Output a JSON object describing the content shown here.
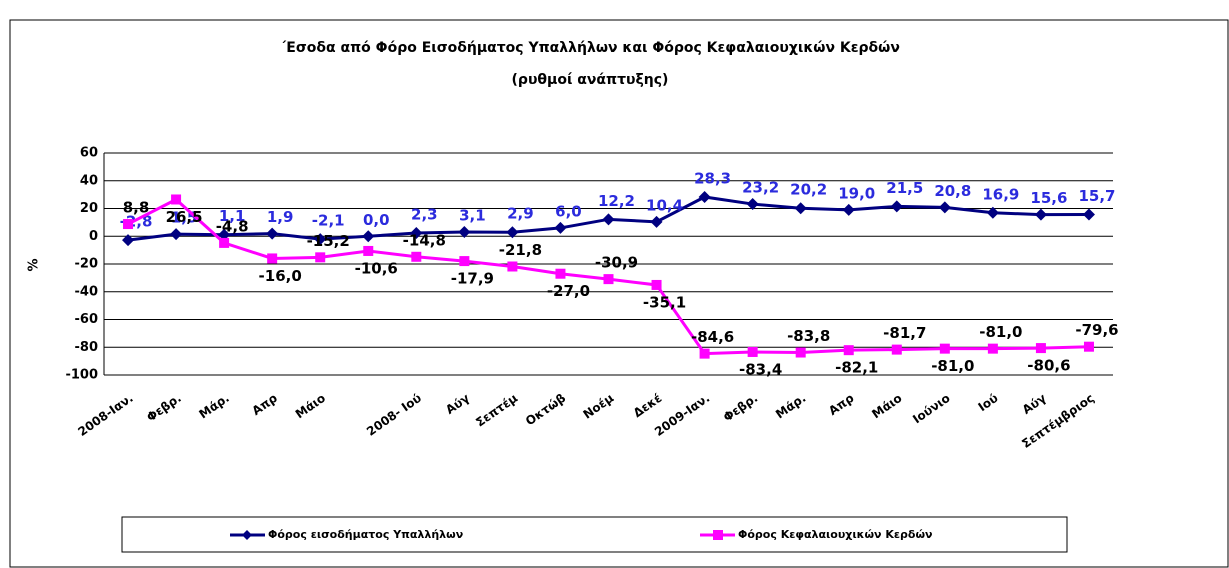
{
  "chart_data": {
    "type": "line",
    "title": "΄Εσοδα από Φόρο Εισοδήματος Υπαλλήλων και  Φόρος Κεφαλαιουχικών Κερδών",
    "subtitle": "(ρυθμοί ανάπτυξης)",
    "y_label": "%",
    "categories": [
      "2008-Ιαν.",
      "Φεβρ.",
      "Μάρ.",
      "Απρ",
      "Μάιο",
      null,
      "2008- Ιού",
      "Αύγ",
      "Σεπτέμ",
      "Οκτώβ",
      "Νοέμ",
      "Δεκέ",
      "2009-Ιαν.",
      "Φεβρ.",
      "Μάρ.",
      "Απρ",
      "Μάιο",
      "Ιούνιο",
      "Ιού",
      "Αύγ",
      "Σεπτέμβριος"
    ],
    "series": [
      {
        "name": "Φόρος εισοδήματος Υπαλλήλων",
        "color": "#000080",
        "label_color": "#2b2bdd",
        "values": [
          -2.8,
          1.5,
          1.1,
          1.9,
          -2.1,
          0.0,
          2.3,
          3.1,
          2.9,
          6.0,
          12.2,
          10.4,
          28.3,
          23.2,
          20.2,
          19.0,
          21.5,
          20.8,
          16.9,
          15.6,
          15.7
        ],
        "value_labels": [
          "-2,8",
          "1,5",
          "1,1",
          "1,9",
          "-2,1",
          "0,0",
          "2,3",
          "3,1",
          "2,9",
          "6,0",
          "12,2",
          "10,4",
          "28,3",
          "23,2",
          "20,2",
          "19,0",
          "21,5",
          "20,8",
          "16,9",
          "15,6",
          "15,7"
        ]
      },
      {
        "name": "Φόρος Κεφαλαιουχικών Κερδών",
        "color": "#ff00ff",
        "label_color": "#000000",
        "values": [
          8.8,
          26.5,
          -4.8,
          -16.0,
          -15.2,
          -10.6,
          -14.8,
          -17.9,
          -21.8,
          -27.0,
          -30.9,
          -35.1,
          -84.6,
          -83.4,
          -83.8,
          -82.1,
          -81.7,
          -81.0,
          -81.0,
          -80.6,
          -79.6
        ],
        "value_labels": [
          "8,8",
          "26,5",
          "-4,8",
          "-16,0",
          "-15,2",
          "-10,6",
          "-14,8",
          "-17,9",
          "-21,8",
          "-27,0",
          "-30,9",
          "-35,1",
          "-84,6",
          "-83,4",
          "-83,8",
          "-82,1",
          "-81,7",
          "-81,0",
          "-81,0",
          "-80,6",
          "-79,6"
        ]
      }
    ],
    "ylim": [
      -100,
      60
    ],
    "yticks": [
      -100,
      -80,
      -60,
      -40,
      -20,
      0,
      20,
      40,
      60
    ],
    "grid": true
  }
}
